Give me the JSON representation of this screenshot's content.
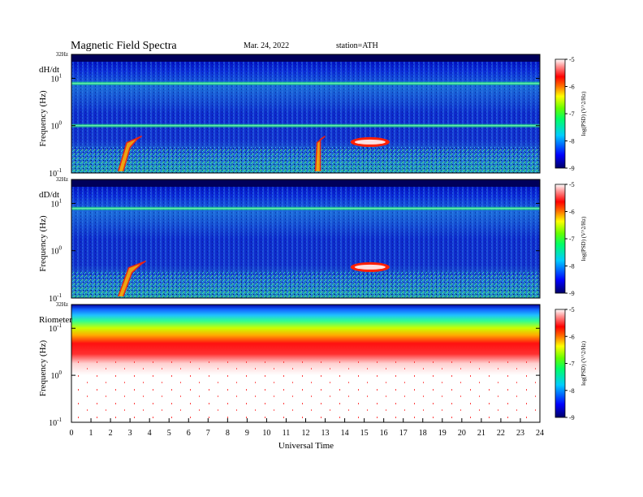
{
  "header": {
    "title": "Magnetic  Field  Spectra",
    "date": "Mar. 24, 2022",
    "station": "station=ATH"
  },
  "chart_data": {
    "type": "heatmap",
    "xlabel": "Universal Time",
    "x_ticks": [
      "0",
      "1",
      "2",
      "3",
      "4",
      "5",
      "6",
      "7",
      "8",
      "9",
      "10",
      "11",
      "12",
      "13",
      "14",
      "15",
      "16",
      "17",
      "18",
      "19",
      "20",
      "21",
      "22",
      "23",
      "24"
    ],
    "xlim": [
      0,
      24
    ],
    "panels": [
      {
        "name": "dH/dt",
        "ylabel": "Frequency  (Hz)",
        "top_label": "32Hz",
        "y_ticks": [
          {
            "base": "10",
            "exp": "1"
          },
          {
            "base": "10",
            "exp": "0"
          },
          {
            "base": "10",
            "exp": "-1"
          }
        ],
        "features": [
          {
            "kind": "line",
            "freq_hz": 7.8
          },
          {
            "kind": "line",
            "freq_hz": 1.0
          },
          {
            "kind": "burst",
            "t_start": 2.4,
            "t_end": 3.6
          },
          {
            "kind": "burst",
            "t_start": 12.5,
            "t_end": 13.0
          },
          {
            "kind": "arc",
            "t_start": 14.3,
            "t_end": 16.3,
            "freq_hz": 0.45
          }
        ]
      },
      {
        "name": "dD/dt",
        "ylabel": "Frequency  (Hz)",
        "top_label": "32Hz",
        "y_ticks": [
          {
            "base": "10",
            "exp": "1"
          },
          {
            "base": "10",
            "exp": "0"
          },
          {
            "base": "10",
            "exp": "-1"
          }
        ],
        "features": [
          {
            "kind": "line",
            "freq_hz": 7.8
          },
          {
            "kind": "burst",
            "t_start": 2.4,
            "t_end": 3.8
          },
          {
            "kind": "arc",
            "t_start": 14.3,
            "t_end": 16.3,
            "freq_hz": 0.45
          }
        ]
      },
      {
        "name": "Riometer",
        "ylabel": "Frequency  (Hz)",
        "top_label": "32Hz",
        "y_ticks": [
          {
            "base": "10",
            "exp": "-1"
          },
          {
            "base": "10",
            "exp": "0"
          },
          {
            "base": "10",
            "exp": "-1"
          }
        ],
        "features": [
          {
            "kind": "band",
            "note": "strong broadband power decreasing with frequency"
          }
        ]
      }
    ],
    "colorbar": {
      "label": "log(PSD) (V^2/Hz)",
      "ticks": [
        "-5",
        "-6",
        "-7",
        "-8",
        "-9"
      ],
      "range": [
        -9,
        -5
      ],
      "colors": [
        "#000066",
        "#0000ff",
        "#00ccff",
        "#00ff66",
        "#66ff00",
        "#ffff00",
        "#ff6600",
        "#ff0000",
        "#ff8080",
        "#ffffff"
      ]
    }
  }
}
